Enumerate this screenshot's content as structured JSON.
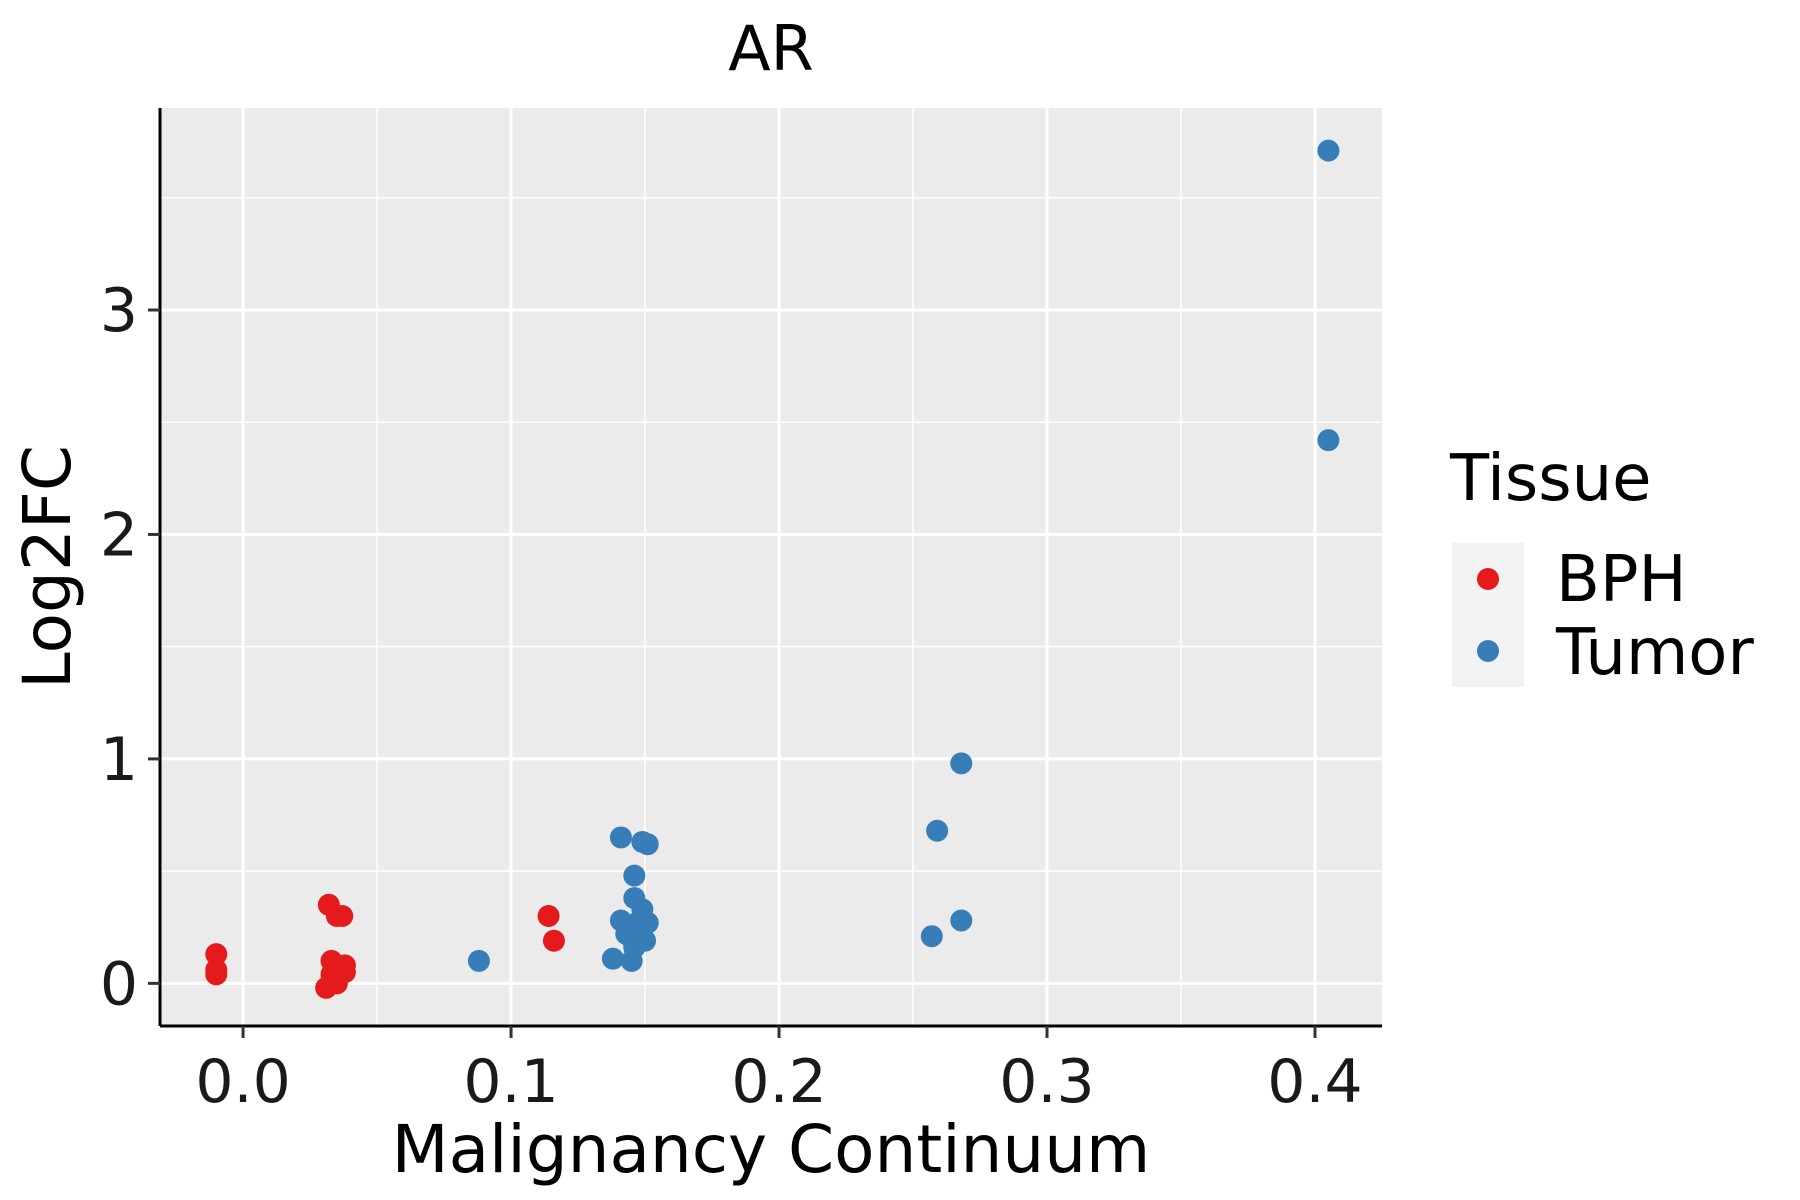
{
  "chart_data": {
    "type": "scatter",
    "title": "AR",
    "xlabel": "Malignancy Continuum",
    "ylabel": "Log2FC",
    "xlim": [
      -0.031,
      0.425
    ],
    "ylim": [
      -0.19,
      3.9
    ],
    "x_ticks": [
      0.0,
      0.1,
      0.2,
      0.3,
      0.4
    ],
    "x_tick_labels": [
      "0.0",
      "0.1",
      "0.2",
      "0.3",
      "0.4"
    ],
    "y_ticks": [
      0,
      1,
      2,
      3
    ],
    "y_tick_labels": [
      "0",
      "1",
      "2",
      "3"
    ],
    "grid": true,
    "legend": {
      "title": "Tissue",
      "position": "right"
    },
    "series": [
      {
        "name": "BPH",
        "color": "#E41A1C",
        "points": [
          [
            -0.01,
            0.13
          ],
          [
            -0.01,
            0.06
          ],
          [
            -0.01,
            0.04
          ],
          [
            0.032,
            0.35
          ],
          [
            0.035,
            0.3
          ],
          [
            0.037,
            0.3
          ],
          [
            0.033,
            0.1
          ],
          [
            0.038,
            0.08
          ],
          [
            0.038,
            0.05
          ],
          [
            0.033,
            0.04
          ],
          [
            0.031,
            -0.02
          ],
          [
            0.035,
            0.0
          ],
          [
            0.036,
            0.06
          ],
          [
            0.034,
            0.03
          ],
          [
            0.114,
            0.3
          ],
          [
            0.116,
            0.19
          ]
        ]
      },
      {
        "name": "Tumor",
        "color": "#377EB8",
        "points": [
          [
            0.088,
            0.1
          ],
          [
            0.141,
            0.65
          ],
          [
            0.149,
            0.63
          ],
          [
            0.151,
            0.62
          ],
          [
            0.146,
            0.48
          ],
          [
            0.146,
            0.38
          ],
          [
            0.149,
            0.33
          ],
          [
            0.141,
            0.28
          ],
          [
            0.147,
            0.27
          ],
          [
            0.151,
            0.27
          ],
          [
            0.143,
            0.22
          ],
          [
            0.145,
            0.2
          ],
          [
            0.15,
            0.19
          ],
          [
            0.146,
            0.16
          ],
          [
            0.138,
            0.11
          ],
          [
            0.145,
            0.1
          ],
          [
            0.257,
            0.21
          ],
          [
            0.268,
            0.28
          ],
          [
            0.259,
            0.68
          ],
          [
            0.268,
            0.98
          ],
          [
            0.405,
            2.42
          ],
          [
            0.405,
            3.71
          ]
        ]
      }
    ]
  }
}
